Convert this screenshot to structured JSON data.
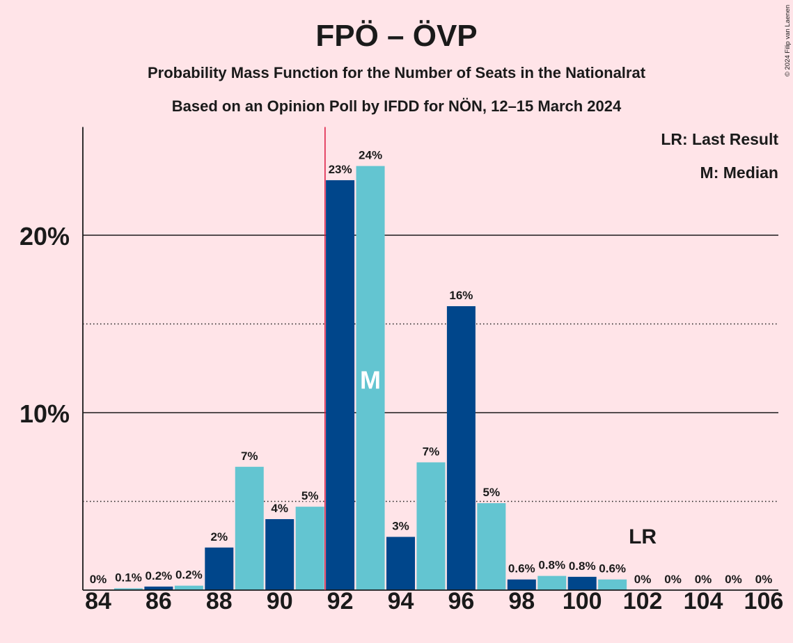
{
  "copyright": "© 2024 Filip van Laenen",
  "legend": {
    "last_result": "LR: Last Result",
    "median": "M: Median"
  },
  "colors": {
    "background": "#FFE4E8",
    "text": "#1A1A1A",
    "bar_even": "#00468B",
    "bar_odd": "#63C5D1",
    "majority_line": "#DC143C",
    "median_marker": "#FFFFFF"
  },
  "chart_data": {
    "type": "bar",
    "title": "FPÖ – ÖVP",
    "subtitle": "Probability Mass Function for the Number of Seats in the Nationalrat",
    "caption": "Based on an Opinion Poll by IFDD for NÖN, 12–15 March 2024",
    "categories": [
      84,
      85,
      86,
      87,
      88,
      89,
      90,
      91,
      92,
      93,
      94,
      95,
      96,
      97,
      98,
      99,
      100,
      101,
      102,
      103,
      104,
      105,
      106
    ],
    "values": [
      0,
      0.1,
      0.2,
      0.25,
      2.4,
      6.95,
      4.0,
      4.7,
      23.1,
      23.9,
      3.0,
      7.2,
      16.0,
      4.9,
      0.6,
      0.8,
      0.75,
      0.6,
      0,
      0,
      0,
      0,
      0
    ],
    "value_labels": [
      "0%",
      "0.1%",
      "0.2%",
      "0.2%",
      "2%",
      "7%",
      "4%",
      "5%",
      "23%",
      "24%",
      "3%",
      "7%",
      "16%",
      "5%",
      "0.6%",
      "0.8%",
      "0.8%",
      "0.6%",
      "0%",
      "0%",
      "0%",
      "0%",
      "0%"
    ],
    "ylim": [
      0,
      26.1
    ],
    "y_ticks": [
      {
        "value": 10,
        "label": "10%"
      },
      {
        "value": 20,
        "label": "20%"
      }
    ],
    "major_gridlines": [
      10,
      20
    ],
    "minor_gridlines": [
      5,
      15
    ],
    "x_ticks": [
      {
        "value": 84,
        "label": "84"
      },
      {
        "value": 86,
        "label": "86"
      },
      {
        "value": 88,
        "label": "88"
      },
      {
        "value": 90,
        "label": "90"
      },
      {
        "value": 92,
        "label": "92"
      },
      {
        "value": 94,
        "label": "94"
      },
      {
        "value": 96,
        "label": "96"
      },
      {
        "value": 98,
        "label": "98"
      },
      {
        "value": 100,
        "label": "100"
      },
      {
        "value": 102,
        "label": "102"
      },
      {
        "value": 104,
        "label": "104"
      },
      {
        "value": 106,
        "label": "106"
      }
    ],
    "median": {
      "seats": 93,
      "label": "M"
    },
    "last_result": {
      "seats": 102,
      "label": "LR"
    },
    "majority_seats": 92
  }
}
